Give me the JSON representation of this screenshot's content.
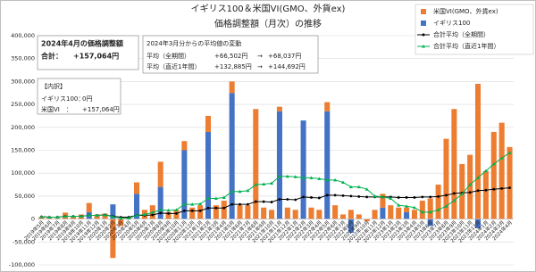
{
  "chart_data": {
    "type": "bar",
    "title": "イギリス100＆米国VI(GMO、外貨ex)",
    "subtitle": "価格調整額（月次）の推移",
    "categories": [
      "2019年5月",
      "2019年6月",
      "2019年7月",
      "2019年8月",
      "2019年9月",
      "2019年10月",
      "2019年11月",
      "2019年12月",
      "2020年1月",
      "2020年2月",
      "2020年3月",
      "2020年4月",
      "2020年5月",
      "2020年6月",
      "2020年7月",
      "2020年8月",
      "2020年9月",
      "2020年10月",
      "2020年11月",
      "2020年12月",
      "2021年1月",
      "2021年2月",
      "2021年3月",
      "2021年4月",
      "2021年5月",
      "2021年6月",
      "2021年7月",
      "2021年8月",
      "2021年9月",
      "2021年10月",
      "2021年11月",
      "2021年12月",
      "2022年1月",
      "2022年2月",
      "2022年3月",
      "2022年4月",
      "2022年5月",
      "2022年6月",
      "2022年7月",
      "2022年8月",
      "2022年9月",
      "2022年10月",
      "2022年11月",
      "2022年12月",
      "2023年1月",
      "2023年2月",
      "2023年3月",
      "2023年4月",
      "2023年5月",
      "2023年6月",
      "2023年7月",
      "2023年8月",
      "2023年9月",
      "2023年10月",
      "2023年11月",
      "2023年12月",
      "2024年1月",
      "2024年2月",
      "2024年3月",
      "2024年4月"
    ],
    "series": [
      {
        "name": "米国VI(GMO、外貨ex)",
        "type": "bar",
        "color": "#ED7D31",
        "values": [
          5000,
          3000,
          2000,
          14000,
          5000,
          10000,
          20000,
          10000,
          12000,
          -85000,
          -15000,
          5000,
          25000,
          20000,
          30000,
          55000,
          15000,
          20000,
          20000,
          25000,
          30000,
          35000,
          30000,
          40000,
          25000,
          30000,
          30000,
          240000,
          25000,
          20000,
          10000,
          25000,
          20000,
          0,
          25000,
          20000,
          20000,
          30000,
          10000,
          20000,
          10000,
          -5000,
          20000,
          30000,
          30000,
          25000,
          10000,
          20000,
          40000,
          45000,
          75000,
          175000,
          240000,
          120000,
          140000,
          295000,
          105000,
          190000,
          210000,
          157064
        ]
      },
      {
        "name": "イギリス100",
        "type": "bar",
        "color": "#4472C4",
        "values": [
          0,
          0,
          0,
          0,
          0,
          0,
          15000,
          0,
          0,
          32000,
          0,
          0,
          55000,
          0,
          0,
          70000,
          0,
          0,
          150000,
          0,
          0,
          190000,
          0,
          0,
          275000,
          0,
          0,
          0,
          0,
          0,
          235000,
          0,
          0,
          215000,
          0,
          0,
          235000,
          0,
          0,
          -30000,
          0,
          0,
          0,
          25000,
          0,
          0,
          15000,
          0,
          0,
          -15000,
          0,
          0,
          0,
          0,
          0,
          -20000,
          0,
          0,
          0,
          0
        ]
      },
      {
        "name": "合計平均（全期間）",
        "type": "line",
        "color": "#000000",
        "marker": "circle",
        "values": [
          5000,
          4000,
          4000,
          6000,
          6000,
          6000,
          8000,
          8000,
          9000,
          6000,
          4000,
          4000,
          8000,
          8000,
          9000,
          13000,
          12000,
          12000,
          18000,
          18000,
          18000,
          24000,
          24000,
          24000,
          32000,
          32000,
          32000,
          38000,
          38000,
          37000,
          43000,
          43000,
          42000,
          48000,
          47000,
          46000,
          52000,
          52000,
          51000,
          50000,
          49000,
          48000,
          48000,
          48000,
          48000,
          47000,
          47000,
          47000,
          48000,
          48000,
          49000,
          52000,
          56000,
          57000,
          58000,
          62000,
          63000,
          65000,
          66502,
          68037
        ]
      },
      {
        "name": "合計平均（直近1年間）",
        "type": "line",
        "color": "#00B050",
        "marker": "triangle",
        "values": [
          5000,
          4000,
          4000,
          6000,
          6000,
          6000,
          8000,
          8000,
          9000,
          5000,
          2000,
          2000,
          8000,
          10000,
          14000,
          20000,
          19000,
          20000,
          32000,
          32000,
          33000,
          45000,
          45000,
          47000,
          60000,
          60000,
          62000,
          75000,
          76000,
          78000,
          93000,
          93000,
          92000,
          90000,
          90000,
          88000,
          85000,
          85000,
          80000,
          70000,
          70000,
          65000,
          50000,
          48000,
          45000,
          30000,
          28000,
          25000,
          15000,
          15000,
          20000,
          28000,
          40000,
          55000,
          75000,
          90000,
          105000,
          120000,
          132885,
          144692
        ]
      }
    ],
    "ylim": [
      -100000,
      400000
    ],
    "yticks": [
      {
        "value": -100000,
        "label": "-100,000"
      },
      {
        "value": -50000,
        "label": "-50,000"
      },
      0,
      {
        "value": 50000,
        "label": "50,000"
      },
      {
        "value": 100000,
        "label": "100,000"
      },
      {
        "value": 150000,
        "label": "150,000"
      },
      {
        "value": 200000,
        "label": "200,000"
      },
      {
        "value": 250000,
        "label": "250,000"
      },
      {
        "value": 300000,
        "label": "300,000"
      },
      {
        "value": 350000,
        "label": "350,000"
      },
      {
        "value": 400000,
        "label": "400,000"
      }
    ],
    "negative_tick_color": "#FF0000",
    "grid": true,
    "legend": "top-right",
    "annotations": [
      {
        "title": "2024年4月の価格調整額",
        "rows": [
          [
            "合計：",
            "+157,064円"
          ]
        ]
      },
      {
        "title": "【内訳】",
        "rows": [
          [
            "イギリス100：",
            "0円"
          ],
          [
            "米国VI　：",
            "+157,064円"
          ]
        ]
      },
      {
        "title": "2024年3月分からの平均値の変動",
        "rows": [
          [
            "平均（全期間）",
            "+66,502円",
            "→",
            "+68,037円"
          ],
          [
            "平均（直近1年間）",
            "+132,885円",
            "→",
            "+144,692円"
          ]
        ]
      }
    ]
  }
}
